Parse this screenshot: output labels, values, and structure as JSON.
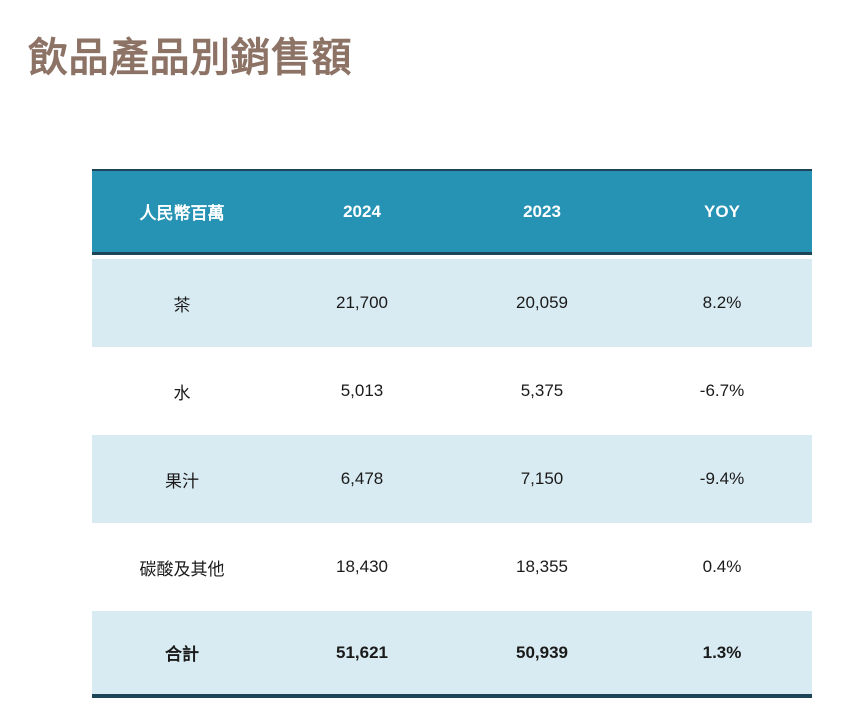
{
  "page": {
    "title": "飲品產品別銷售額"
  },
  "colors": {
    "title_text": "#8C7365",
    "header_bg": "#2793B4",
    "header_text": "#FFFFFF",
    "row_alt_bg": "#D9EBF2",
    "row_bg": "#FFFFFF",
    "border_dark": "#1E4557",
    "body_text": "#1A1A1A"
  },
  "chart_data": {
    "type": "table",
    "title": "飲品產品別銷售額",
    "columns": [
      "人民幣百萬",
      "2024",
      "2023",
      "YOY"
    ],
    "categories": [
      "茶",
      "水",
      "果汁",
      "碳酸及其他",
      "合計"
    ],
    "series": [
      {
        "name": "2024",
        "values": [
          21700,
          5013,
          6478,
          18430,
          51621
        ]
      },
      {
        "name": "2023",
        "values": [
          20059,
          5375,
          7150,
          18355,
          50939
        ]
      },
      {
        "name": "YOY",
        "values": [
          "8.2%",
          "-6.7%",
          "-9.4%",
          "0.4%",
          "1.3%"
        ]
      }
    ],
    "rows": [
      {
        "cells": [
          "茶",
          "21,700",
          "20,059",
          "8.2%"
        ]
      },
      {
        "cells": [
          "水",
          "5,013",
          "5,375",
          "-6.7%"
        ]
      },
      {
        "cells": [
          "果汁",
          "6,478",
          "7,150",
          "-9.4%"
        ]
      },
      {
        "cells": [
          "碳酸及其他",
          "18,430",
          "18,355",
          "0.4%"
        ]
      },
      {
        "cells": [
          "合計",
          "51,621",
          "50,939",
          "1.3%"
        ]
      }
    ]
  }
}
